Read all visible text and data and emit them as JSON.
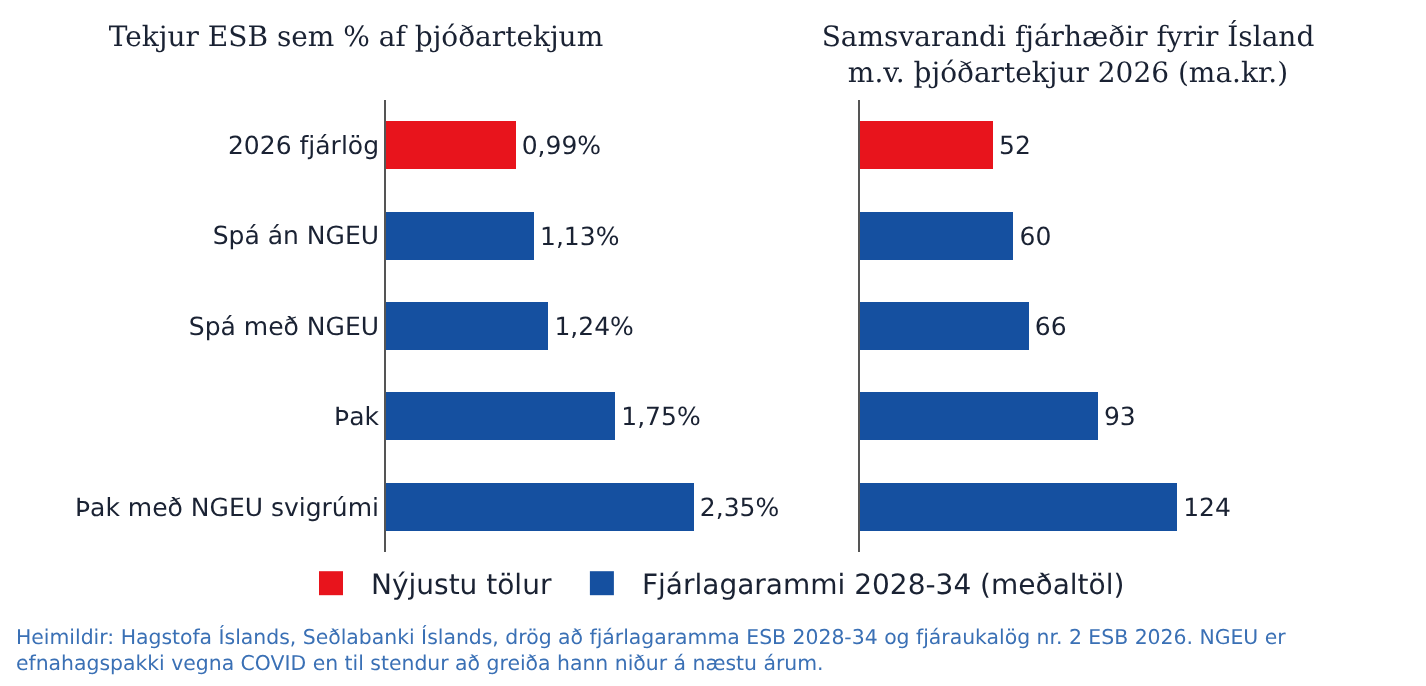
{
  "chart_data": [
    {
      "type": "bar",
      "orientation": "horizontal",
      "stacked": true,
      "title": "Tekjur ESB sem % af þjóðartekjum",
      "categories": [
        "2026 fjárlög",
        "Spá án NGEU",
        "Spá með NGEU",
        "Þak",
        "Þak með NGEU svigrúmi"
      ],
      "series": [
        {
          "name": "Nýjustu tölur",
          "color": "#e8141c",
          "values": [
            0.99,
            null,
            null,
            null,
            null
          ],
          "value_labels": [
            "0,99%",
            null,
            null,
            null,
            null
          ]
        },
        {
          "name": "Fjárlagarammi 2028-34 (meðaltöl)",
          "color": "#1550a0",
          "values": [
            null,
            1.13,
            1.24,
            1.75,
            2.35
          ],
          "value_labels": [
            null,
            "1,13%",
            "1,24%",
            "1,75%",
            "2,35%"
          ]
        }
      ],
      "tick_labels": "y",
      "grid": false,
      "legend": "bottom",
      "annotations": [
        "Heimildir: Hagstofa Íslands, Seðlabanki Íslands, drög að fjárlagaramma ESB 2028-34 og fjáraukalög nr. 2 ESB 2026. NGEU er efnahagspakki vegna COVID en til stendur að greiða hann niður á næstu árum."
      ]
    },
    {
      "type": "bar",
      "orientation": "horizontal",
      "stacked": true,
      "title": "Samsvarandi fjárhæðir fyrir Ísland m.v. þjóðartekjur 2026 (ma.kr.)",
      "categories": [
        null,
        null,
        null,
        null,
        null
      ],
      "series": [
        {
          "color": "#e8141c",
          "values": [
            52,
            null,
            null,
            null,
            null
          ]
        },
        {
          "color": "#1550a0",
          "values": [
            null,
            60,
            66,
            93,
            124
          ]
        }
      ],
      "tick_labels": false,
      "grid": false,
      "legend": false,
      "data_labels": true
    }
  ]
}
